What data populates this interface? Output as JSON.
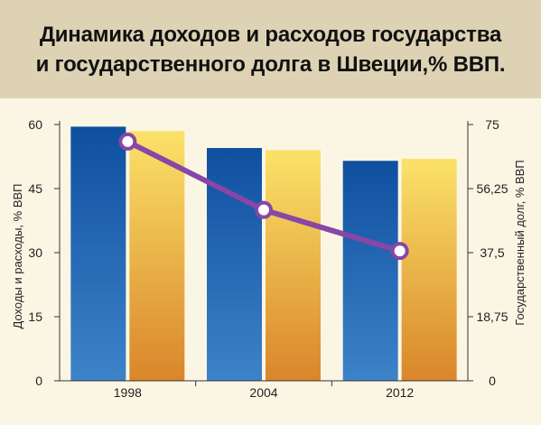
{
  "title_lines": [
    "Динамика доходов и расходов государства",
    "и государственного долга в Швеции,% ВВП."
  ],
  "colors": {
    "header_bg": "#ddd3b4",
    "plot_bg": "#fbf6e4",
    "revenue_top": "#0f4fa0",
    "revenue_bottom": "#3d83c8",
    "expense_top": "#fbe26a",
    "expense_bottom": "#d9862a",
    "debt_line": "#8846a6"
  },
  "chart_data": {
    "type": "bar",
    "categories": [
      "1998",
      "2004",
      "2012"
    ],
    "series": [
      {
        "values": [
          59.5,
          54.5,
          51.5
        ],
        "kind": "bar",
        "axis": "left"
      },
      {
        "values": [
          58.5,
          54.0,
          52.0
        ],
        "kind": "bar",
        "axis": "left"
      },
      {
        "values": [
          70.0,
          50.0,
          38.0
        ],
        "kind": "line",
        "axis": "right"
      }
    ],
    "ylabel": "Доходы и расходы, % ВВП",
    "ylabel_right": "Государственный долг, % ВВП",
    "ylim": [
      0,
      60
    ],
    "ylim_right": [
      0,
      75
    ],
    "yticks": [
      "0",
      "15",
      "30",
      "45",
      "60"
    ],
    "yticks_right": [
      "0",
      "18,75",
      "37,5",
      "56,25",
      "75"
    ],
    "grid": false,
    "legend": "none"
  }
}
